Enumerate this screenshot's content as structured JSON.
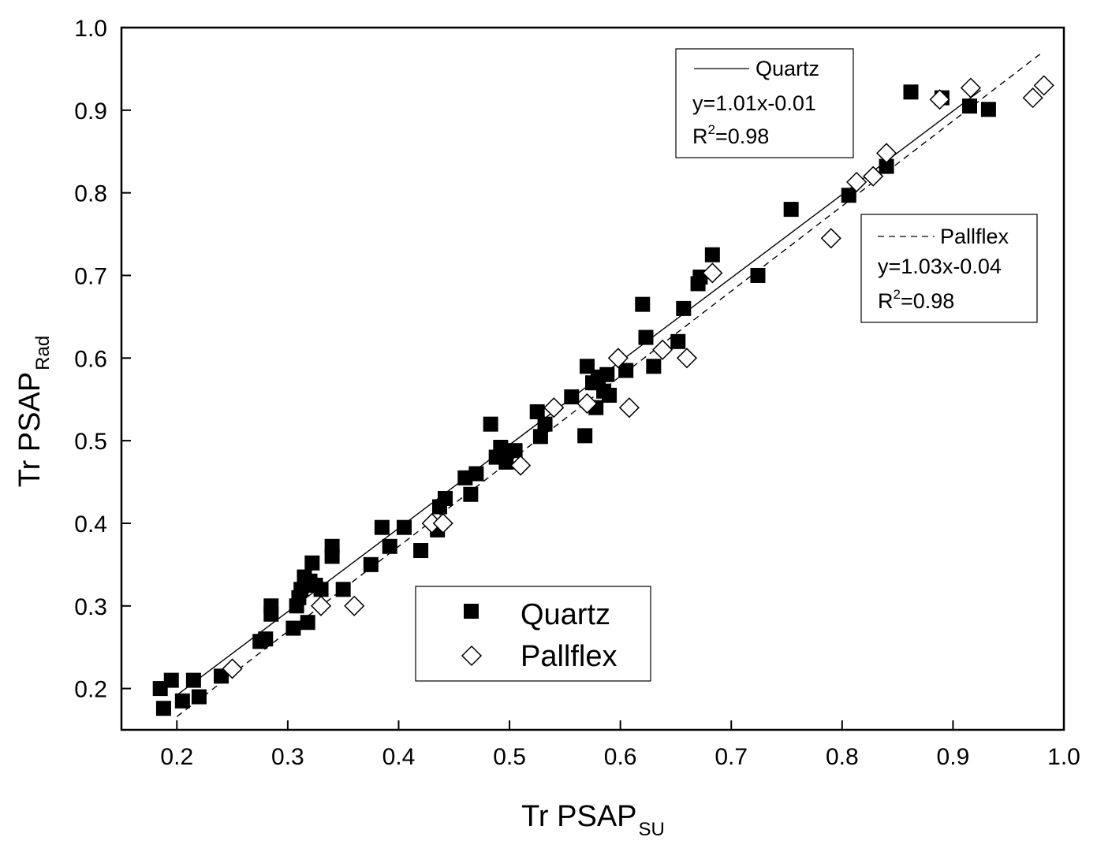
{
  "chart_data": {
    "type": "scatter",
    "xlabel": "Tr PSAP",
    "xlabel_sub": "SU",
    "ylabel": "Tr PSAP",
    "ylabel_sub": "Rad",
    "xlim": [
      0.15,
      1.0
    ],
    "ylim": [
      0.15,
      1.0
    ],
    "x_ticks": [
      "0.2",
      "0.3",
      "0.4",
      "0.5",
      "0.6",
      "0.7",
      "0.8",
      "0.9",
      "1.0"
    ],
    "y_ticks": [
      "0.2",
      "0.3",
      "0.4",
      "0.5",
      "0.6",
      "0.7",
      "0.8",
      "0.9",
      "1.0"
    ],
    "grid": false,
    "legend": {
      "placement": "bottom-center",
      "entries": [
        {
          "marker": "filled-square",
          "label": "Quartz"
        },
        {
          "marker": "open-diamond",
          "label": "Pallflex"
        }
      ]
    },
    "fits": [
      {
        "series": "Quartz",
        "line_style": "solid",
        "label": "Quartz",
        "equation": "y=1.01x-0.01",
        "r2_prefix": "R",
        "r2_sup": "2",
        "r2_value": "=0.98",
        "slope": 1.01,
        "intercept": -0.01,
        "x_range": [
          0.2,
          0.925
        ],
        "box_placement": "top-right"
      },
      {
        "series": "Pallflex",
        "line_style": "dashed",
        "label": "Pallflex",
        "equation": "y=1.03x-0.04",
        "r2_prefix": "R",
        "r2_sup": "2",
        "r2_value": "=0.98",
        "slope": 1.03,
        "intercept": -0.04,
        "x_range": [
          0.2,
          0.98
        ],
        "box_placement": "right"
      }
    ],
    "series": [
      {
        "name": "Quartz",
        "marker": "filled-square",
        "points": [
          [
            0.185,
            0.2
          ],
          [
            0.188,
            0.176
          ],
          [
            0.195,
            0.21
          ],
          [
            0.205,
            0.185
          ],
          [
            0.215,
            0.21
          ],
          [
            0.22,
            0.19
          ],
          [
            0.24,
            0.215
          ],
          [
            0.275,
            0.257
          ],
          [
            0.28,
            0.26
          ],
          [
            0.285,
            0.3
          ],
          [
            0.285,
            0.29
          ],
          [
            0.305,
            0.273
          ],
          [
            0.308,
            0.3
          ],
          [
            0.31,
            0.31
          ],
          [
            0.312,
            0.32
          ],
          [
            0.315,
            0.335
          ],
          [
            0.318,
            0.28
          ],
          [
            0.32,
            0.33
          ],
          [
            0.322,
            0.352
          ],
          [
            0.325,
            0.325
          ],
          [
            0.33,
            0.32
          ],
          [
            0.34,
            0.36
          ],
          [
            0.34,
            0.372
          ],
          [
            0.35,
            0.32
          ],
          [
            0.375,
            0.35
          ],
          [
            0.385,
            0.395
          ],
          [
            0.392,
            0.372
          ],
          [
            0.405,
            0.395
          ],
          [
            0.42,
            0.367
          ],
          [
            0.435,
            0.392
          ],
          [
            0.437,
            0.42
          ],
          [
            0.442,
            0.43
          ],
          [
            0.46,
            0.455
          ],
          [
            0.465,
            0.435
          ],
          [
            0.47,
            0.46
          ],
          [
            0.483,
            0.52
          ],
          [
            0.488,
            0.48
          ],
          [
            0.492,
            0.492
          ],
          [
            0.497,
            0.474
          ],
          [
            0.505,
            0.488
          ],
          [
            0.525,
            0.535
          ],
          [
            0.528,
            0.505
          ],
          [
            0.532,
            0.52
          ],
          [
            0.556,
            0.553
          ],
          [
            0.568,
            0.506
          ],
          [
            0.57,
            0.59
          ],
          [
            0.575,
            0.57
          ],
          [
            0.578,
            0.54
          ],
          [
            0.58,
            0.577
          ],
          [
            0.585,
            0.56
          ],
          [
            0.588,
            0.58
          ],
          [
            0.59,
            0.555
          ],
          [
            0.605,
            0.585
          ],
          [
            0.62,
            0.665
          ],
          [
            0.623,
            0.625
          ],
          [
            0.63,
            0.59
          ],
          [
            0.652,
            0.62
          ],
          [
            0.657,
            0.66
          ],
          [
            0.67,
            0.69
          ],
          [
            0.672,
            0.698
          ],
          [
            0.683,
            0.725
          ],
          [
            0.724,
            0.7
          ],
          [
            0.754,
            0.78
          ],
          [
            0.806,
            0.797
          ],
          [
            0.84,
            0.832
          ],
          [
            0.862,
            0.922
          ],
          [
            0.89,
            0.915
          ],
          [
            0.915,
            0.905
          ],
          [
            0.932,
            0.901
          ]
        ]
      },
      {
        "name": "Pallflex",
        "marker": "open-diamond",
        "points": [
          [
            0.25,
            0.224
          ],
          [
            0.33,
            0.3
          ],
          [
            0.36,
            0.3
          ],
          [
            0.43,
            0.4
          ],
          [
            0.44,
            0.4
          ],
          [
            0.51,
            0.47
          ],
          [
            0.54,
            0.54
          ],
          [
            0.57,
            0.545
          ],
          [
            0.598,
            0.6
          ],
          [
            0.608,
            0.54
          ],
          [
            0.638,
            0.61
          ],
          [
            0.66,
            0.6
          ],
          [
            0.683,
            0.703
          ],
          [
            0.79,
            0.745
          ],
          [
            0.813,
            0.813
          ],
          [
            0.828,
            0.82
          ],
          [
            0.84,
            0.848
          ],
          [
            0.888,
            0.913
          ],
          [
            0.916,
            0.927
          ],
          [
            0.972,
            0.915
          ],
          [
            0.982,
            0.93
          ]
        ]
      }
    ]
  }
}
